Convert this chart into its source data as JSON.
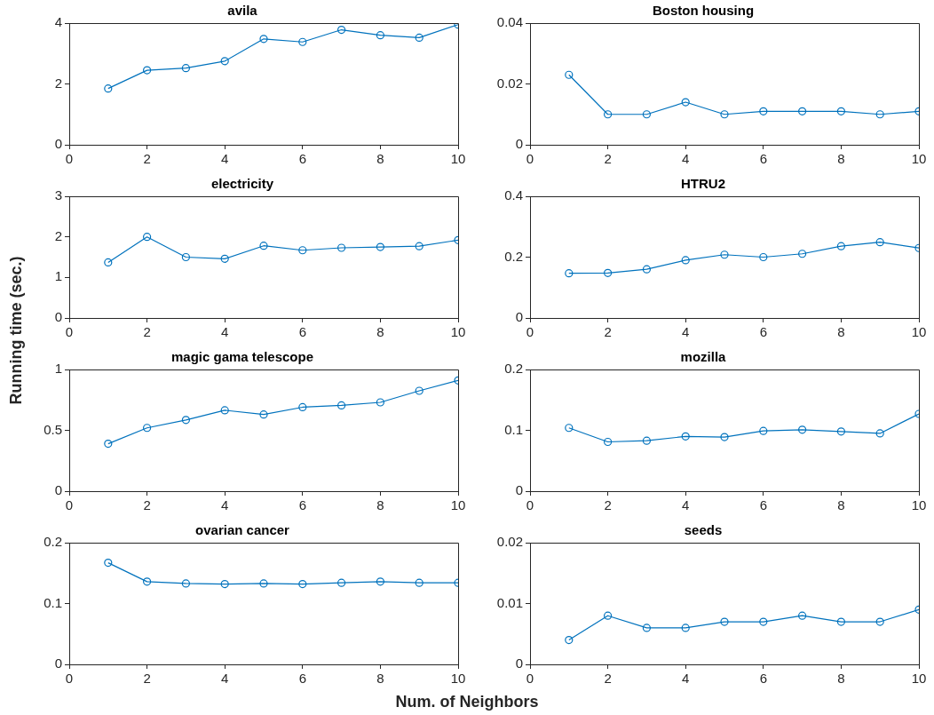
{
  "chart_data": [
    {
      "type": "line",
      "title": "avila",
      "x": [
        1,
        2,
        3,
        4,
        5,
        6,
        7,
        8,
        9,
        10
      ],
      "values": [
        1.85,
        2.45,
        2.52,
        2.75,
        3.48,
        3.38,
        3.78,
        3.6,
        3.52,
        3.95
      ],
      "color": "#0072bd",
      "marker": "circle",
      "xlim": [
        0,
        10
      ],
      "xticks": [
        0,
        2,
        4,
        6,
        8,
        10
      ],
      "ylim": [
        0,
        4
      ],
      "yticks": [
        0,
        2,
        4
      ],
      "grid": false,
      "legend": false
    },
    {
      "type": "line",
      "title": "Boston housing",
      "x": [
        1,
        2,
        3,
        4,
        5,
        6,
        7,
        8,
        9,
        10
      ],
      "values": [
        0.023,
        0.01,
        0.01,
        0.014,
        0.01,
        0.011,
        0.011,
        0.011,
        0.01,
        0.011
      ],
      "color": "#0072bd",
      "marker": "circle",
      "xlim": [
        0,
        10
      ],
      "xticks": [
        0,
        2,
        4,
        6,
        8,
        10
      ],
      "ylim": [
        0,
        0.04
      ],
      "yticks": [
        0,
        0.02,
        0.04
      ],
      "grid": false,
      "legend": false
    },
    {
      "type": "line",
      "title": "electricity",
      "ylabel": "Running time (sec.)",
      "x": [
        1,
        2,
        3,
        4,
        5,
        6,
        7,
        8,
        9,
        10
      ],
      "values": [
        1.37,
        2.0,
        1.5,
        1.46,
        1.78,
        1.67,
        1.73,
        1.75,
        1.77,
        1.92
      ],
      "color": "#0072bd",
      "marker": "circle",
      "xlim": [
        0,
        10
      ],
      "xticks": [
        0,
        2,
        4,
        6,
        8,
        10
      ],
      "ylim": [
        0,
        3
      ],
      "yticks": [
        0,
        1,
        2,
        3
      ],
      "grid": false,
      "legend": false
    },
    {
      "type": "line",
      "title": "HTRU2",
      "x": [
        1,
        2,
        3,
        4,
        5,
        6,
        7,
        8,
        9,
        10
      ],
      "values": [
        0.147,
        0.148,
        0.16,
        0.19,
        0.208,
        0.2,
        0.211,
        0.236,
        0.249,
        0.23
      ],
      "color": "#0072bd",
      "marker": "circle",
      "xlim": [
        0,
        10
      ],
      "xticks": [
        0,
        2,
        4,
        6,
        8,
        10
      ],
      "ylim": [
        0,
        0.4
      ],
      "yticks": [
        0,
        0.2,
        0.4
      ],
      "grid": false,
      "legend": false
    },
    {
      "type": "line",
      "title": "magic gama telescope",
      "x": [
        1,
        2,
        3,
        4,
        5,
        6,
        7,
        8,
        9,
        10
      ],
      "values": [
        0.39,
        0.52,
        0.585,
        0.665,
        0.63,
        0.69,
        0.705,
        0.73,
        0.825,
        0.91
      ],
      "color": "#0072bd",
      "marker": "circle",
      "xlim": [
        0,
        10
      ],
      "xticks": [
        0,
        2,
        4,
        6,
        8,
        10
      ],
      "ylim": [
        0,
        1
      ],
      "yticks": [
        0,
        0.5,
        1
      ],
      "grid": false,
      "legend": false
    },
    {
      "type": "line",
      "title": "mozilla",
      "x": [
        1,
        2,
        3,
        4,
        5,
        6,
        7,
        8,
        9,
        10
      ],
      "values": [
        0.104,
        0.081,
        0.083,
        0.09,
        0.089,
        0.099,
        0.101,
        0.098,
        0.095,
        0.127
      ],
      "color": "#0072bd",
      "marker": "circle",
      "xlim": [
        0,
        10
      ],
      "xticks": [
        0,
        2,
        4,
        6,
        8,
        10
      ],
      "ylim": [
        0,
        0.2
      ],
      "yticks": [
        0,
        0.1,
        0.2
      ],
      "grid": false,
      "legend": false
    },
    {
      "type": "line",
      "title": "ovarian cancer",
      "xlabel": "Num. of Neighbors",
      "x": [
        1,
        2,
        3,
        4,
        5,
        6,
        7,
        8,
        9,
        10
      ],
      "values": [
        0.167,
        0.136,
        0.133,
        0.132,
        0.133,
        0.132,
        0.134,
        0.136,
        0.134,
        0.134
      ],
      "color": "#0072bd",
      "marker": "circle",
      "xlim": [
        0,
        10
      ],
      "xticks": [
        0,
        2,
        4,
        6,
        8,
        10
      ],
      "ylim": [
        0,
        0.2
      ],
      "yticks": [
        0,
        0.1,
        0.2
      ],
      "grid": false,
      "legend": false
    },
    {
      "type": "line",
      "title": "seeds",
      "x": [
        1,
        2,
        3,
        4,
        5,
        6,
        7,
        8,
        9,
        10
      ],
      "values": [
        0.004,
        0.008,
        0.006,
        0.006,
        0.007,
        0.007,
        0.008,
        0.007,
        0.007,
        0.009
      ],
      "color": "#0072bd",
      "marker": "circle",
      "xlim": [
        0,
        10
      ],
      "xticks": [
        0,
        2,
        4,
        6,
        8,
        10
      ],
      "ylim": [
        0,
        0.02
      ],
      "yticks": [
        0,
        0.01,
        0.02
      ],
      "grid": false,
      "legend": false
    }
  ]
}
